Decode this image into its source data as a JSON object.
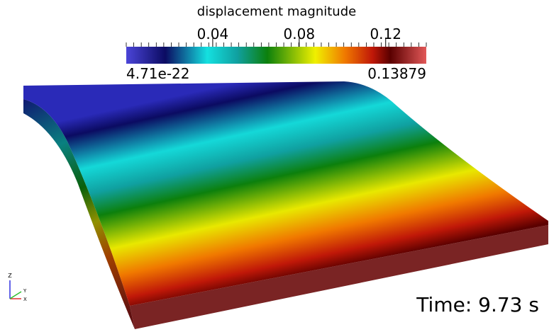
{
  "colorbar": {
    "title": "displacement magnitude",
    "range": [
      4.71e-22,
      0.13879
    ],
    "ticks": [
      0.04,
      0.08,
      0.12
    ]
  },
  "orientation_axes": {
    "z": "Z",
    "y": "Y",
    "x": "X"
  },
  "time_label": "Time: 9.73 s"
}
